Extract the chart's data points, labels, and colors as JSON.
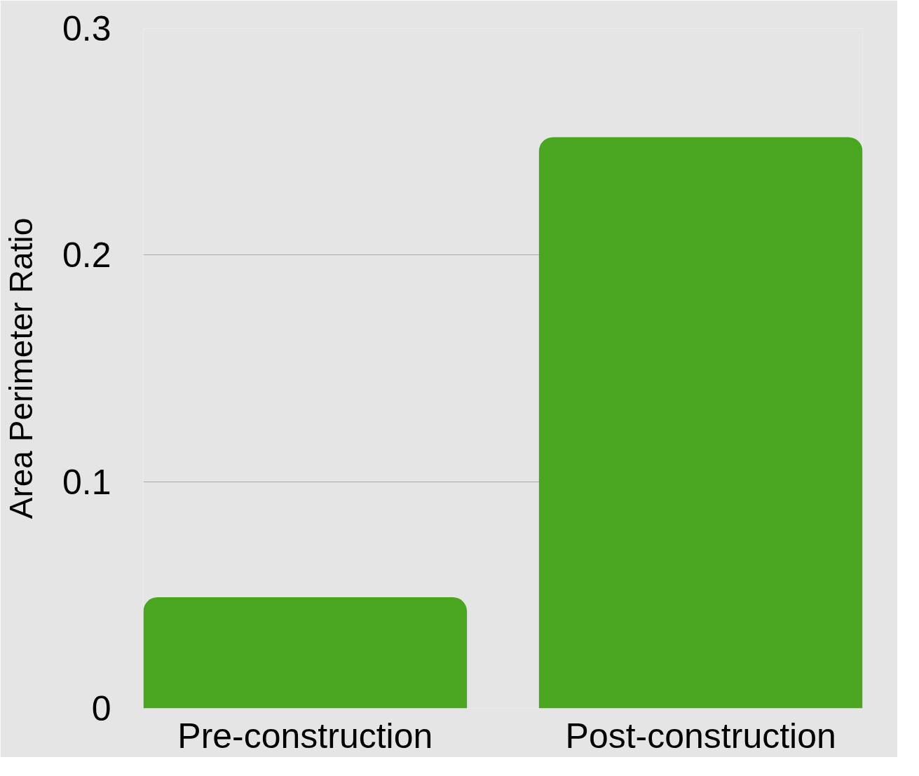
{
  "chart_data": {
    "type": "bar",
    "ylabel": "Area Perimeter Ratio",
    "categories": [
      "Pre-construction",
      "Post-construction"
    ],
    "values": [
      0.049,
      0.252
    ],
    "color": "#4aa520",
    "ylim": [
      0,
      0.3
    ],
    "yticks": [
      0,
      0.1,
      0.2,
      0.3
    ],
    "grid": "y"
  }
}
